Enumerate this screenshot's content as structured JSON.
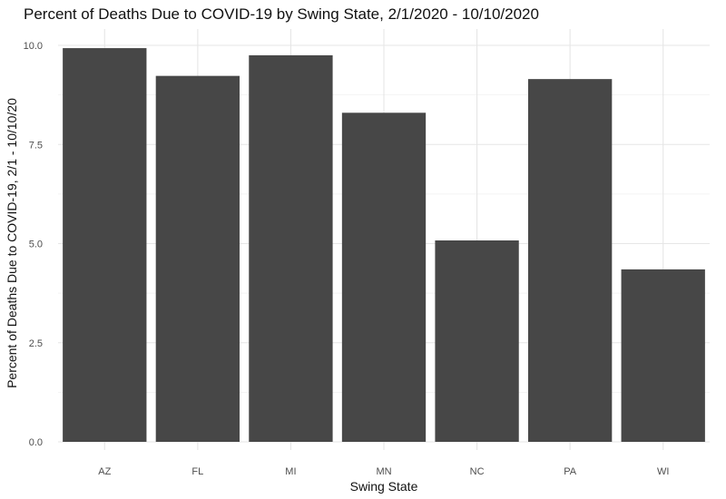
{
  "chart_data": {
    "type": "bar",
    "title": "Percent of Deaths Due to COVID-19 by Swing State, 2/1/2020 - 10/10/2020",
    "xlabel": "Swing State",
    "ylabel": "Percent of Deaths Due to COVID-19, 2/1 - 10/10/20",
    "categories": [
      "AZ",
      "FL",
      "MI",
      "MN",
      "NC",
      "PA",
      "WI"
    ],
    "values": [
      9.93,
      9.23,
      9.75,
      8.3,
      5.08,
      9.15,
      4.35
    ],
    "ylim": [
      0,
      10
    ],
    "yticks": [
      "0.0",
      "2.5",
      "5.0",
      "7.5",
      "10.0"
    ],
    "bar_color": "#474747",
    "grid": true,
    "legend": "none"
  }
}
